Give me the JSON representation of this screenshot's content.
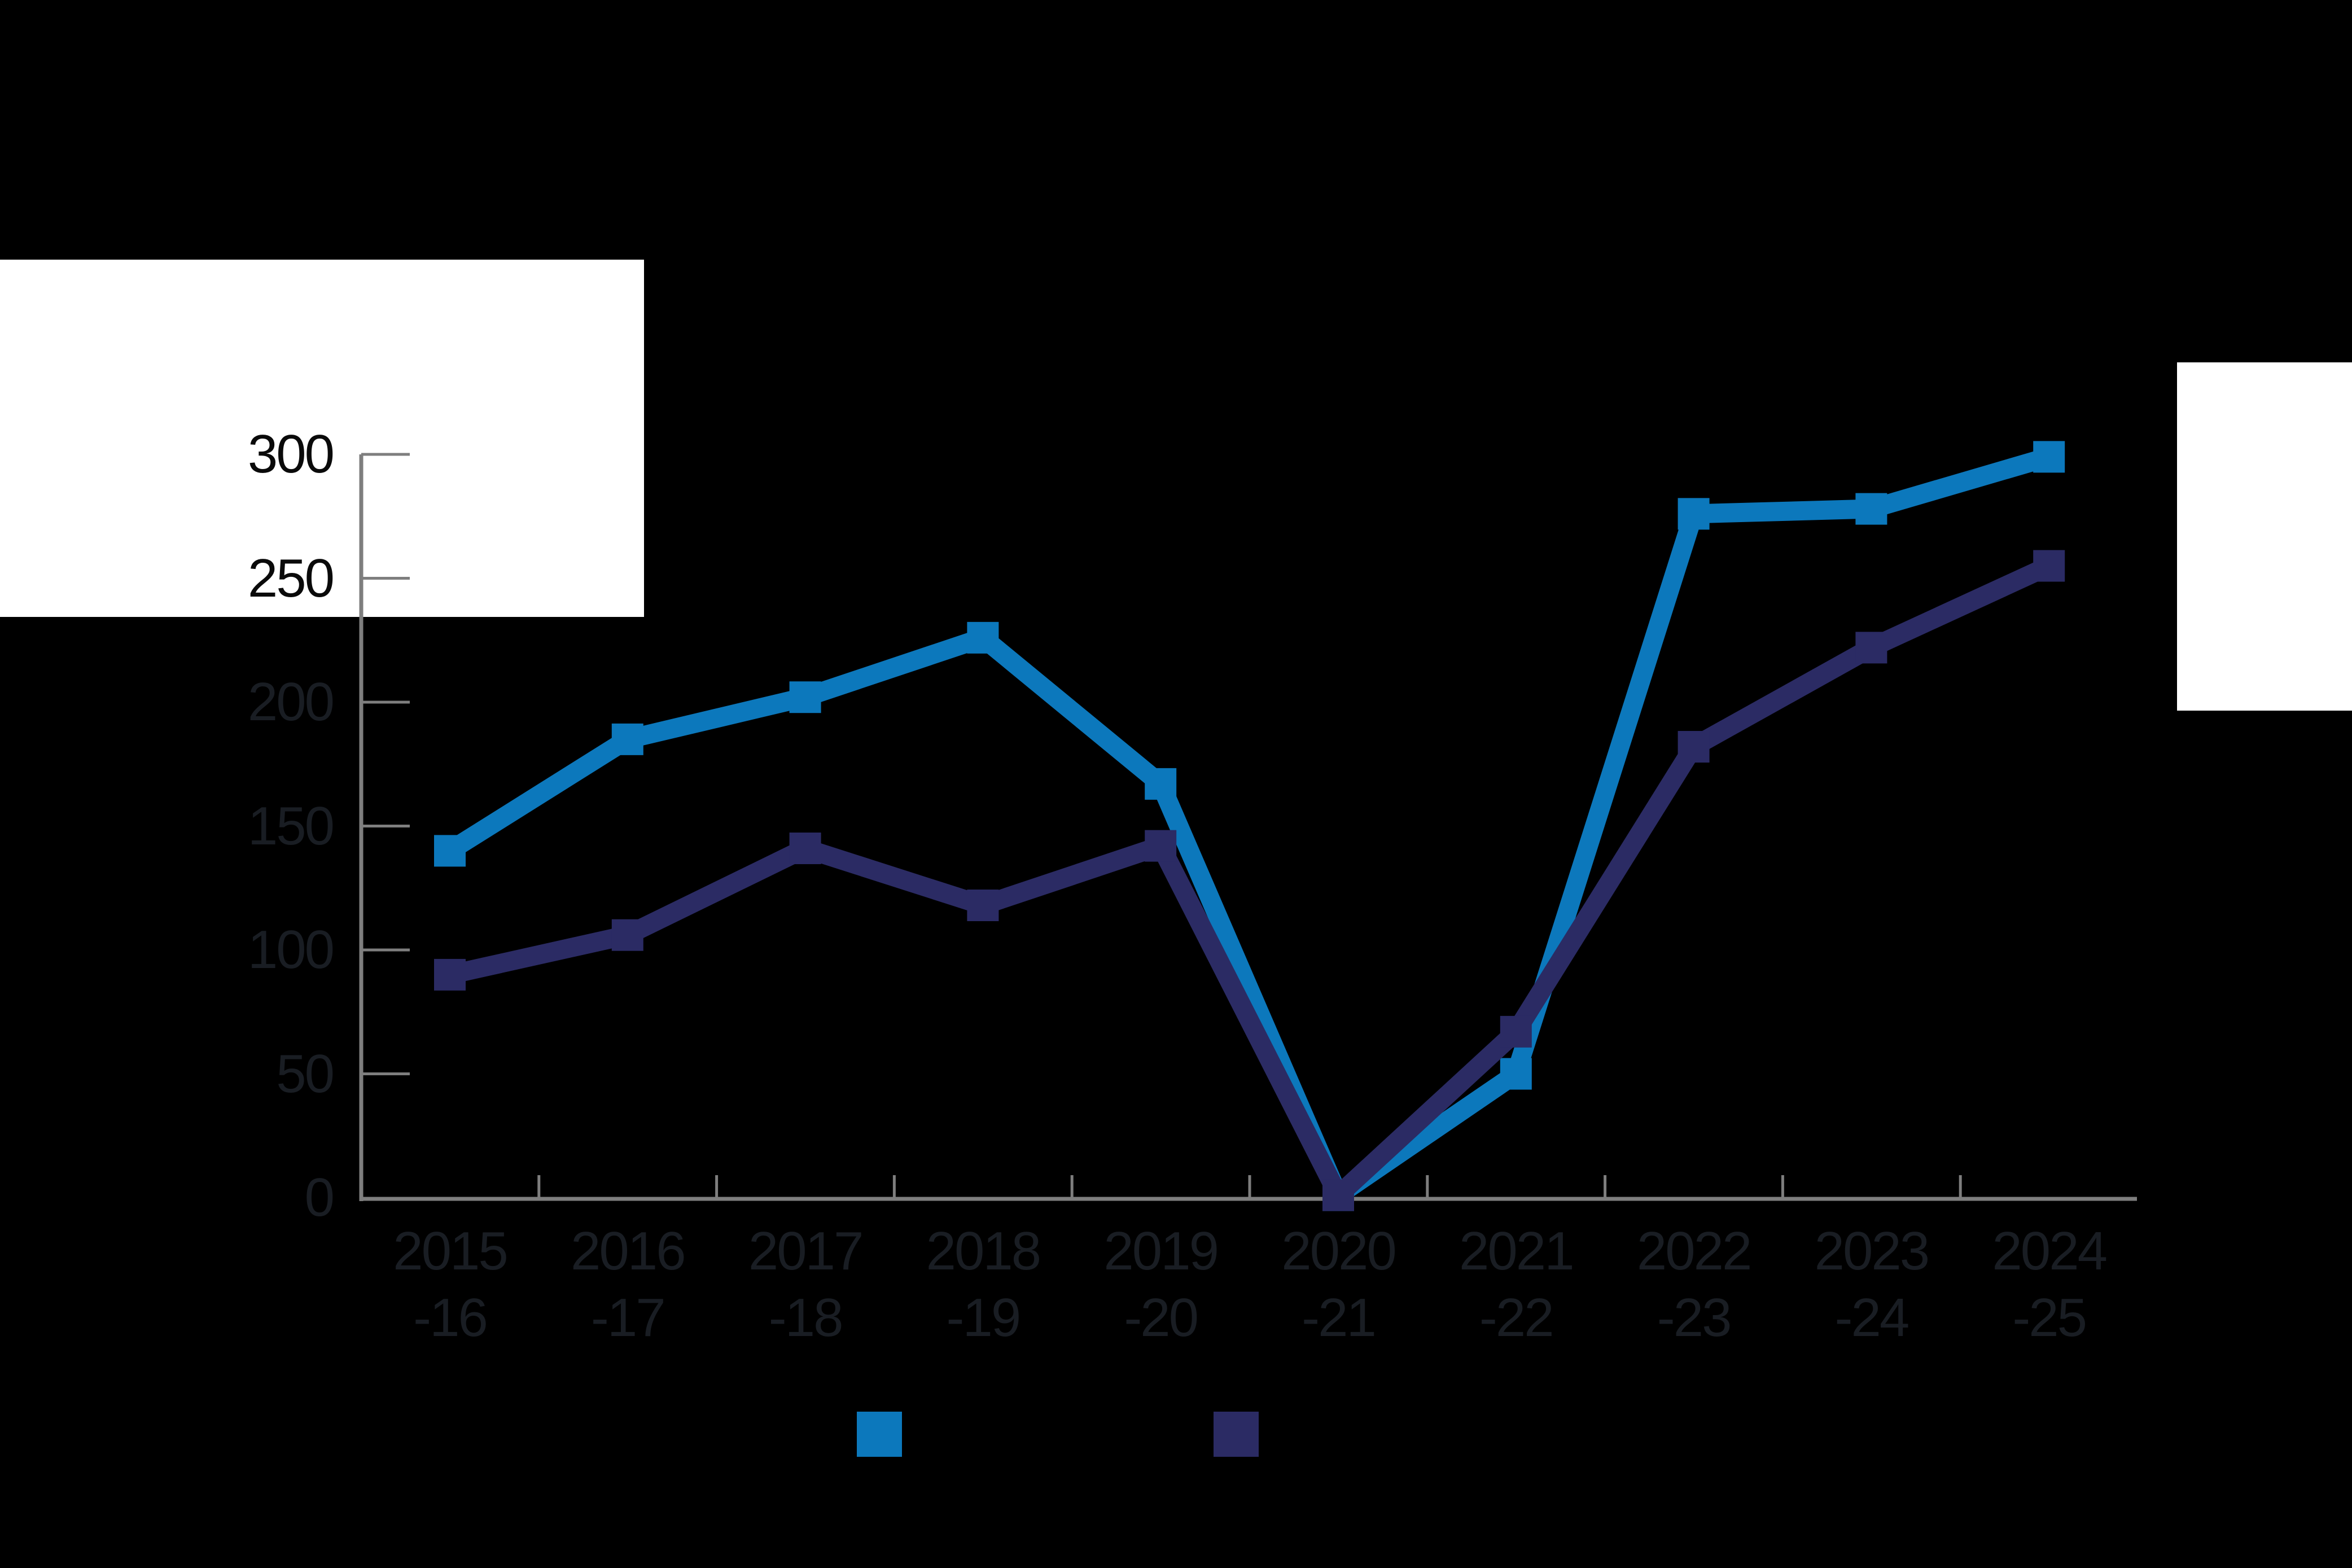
{
  "background_color": "#000000",
  "colors": {
    "series_light_blue": "#0c78bc",
    "series_dark_navy": "#2b2b64",
    "axis_gray": "#7e7e7e",
    "label_on_black": "#191d23",
    "label_on_white": "#0a0a0a",
    "white_panel": "#ffffff"
  },
  "y_axis": {
    "tick_labels": [
      "300",
      "250",
      "200",
      "150",
      "100",
      "50",
      "0"
    ],
    "tick_values": [
      300,
      250,
      200,
      150,
      100,
      50,
      0
    ]
  },
  "x_axis": {
    "categories_line1": [
      "2015",
      "2016",
      "2017",
      "2018",
      "2019",
      "2020",
      "2021",
      "2022",
      "2023",
      "2024"
    ],
    "categories_line2": [
      "-16",
      "-17",
      "-18",
      "-19",
      "-20",
      "-21",
      "-22",
      "-23",
      "-24",
      "-25"
    ]
  },
  "legend": {
    "items": [
      {
        "name": "light_blue_series",
        "color": "#0c78bc"
      },
      {
        "name": "dark_navy_series",
        "color": "#2b2b64"
      }
    ]
  },
  "chart_data": {
    "type": "line",
    "categories": [
      "2015-16",
      "2016-17",
      "2017-18",
      "2018-19",
      "2019-20",
      "2020-21",
      "2021-22",
      "2022-23",
      "2023-24",
      "2024-25"
    ],
    "series": [
      {
        "name": "light_blue",
        "color": "#0c78bc",
        "values": [
          140,
          185,
          202,
          226,
          167,
          1,
          50,
          276,
          278,
          299
        ]
      },
      {
        "name": "dark_navy",
        "color": "#2b2b64",
        "values": [
          90,
          106,
          141,
          118,
          142,
          1,
          67,
          182,
          222,
          255
        ]
      }
    ],
    "title": "",
    "xlabel": "",
    "ylabel": "",
    "ylim": [
      0,
      300
    ],
    "y_tick_step": 50,
    "grid": false,
    "marker": "square",
    "legend_position": "bottom"
  }
}
